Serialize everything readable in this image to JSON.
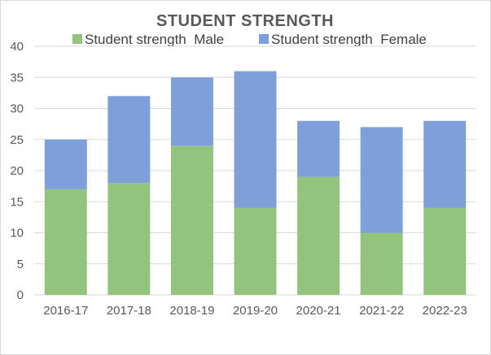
{
  "chart_data": {
    "type": "bar",
    "stacked": true,
    "title": "STUDENT STRENGTH",
    "categories": [
      "2016-17",
      "2017-18",
      "2018-19",
      "2019-20",
      "2020-21",
      "2021-22",
      "2022-23"
    ],
    "series": [
      {
        "name": "Student strength  Male",
        "color": "#93c47d",
        "values": [
          17,
          18,
          24,
          14,
          19,
          10,
          14
        ]
      },
      {
        "name": "Student strength  Female",
        "color": "#7f9fdb",
        "values": [
          8,
          14,
          11,
          22,
          9,
          17,
          14
        ]
      }
    ],
    "y_ticks": [
      "0",
      "5",
      "10",
      "15",
      "20",
      "25",
      "30",
      "35",
      "40"
    ],
    "ylim": [
      0,
      40
    ],
    "grid": true,
    "legend_position": "top"
  },
  "colors": {
    "male": "#93c47d",
    "female": "#7f9fdb",
    "grid": "#d9d9d9"
  }
}
